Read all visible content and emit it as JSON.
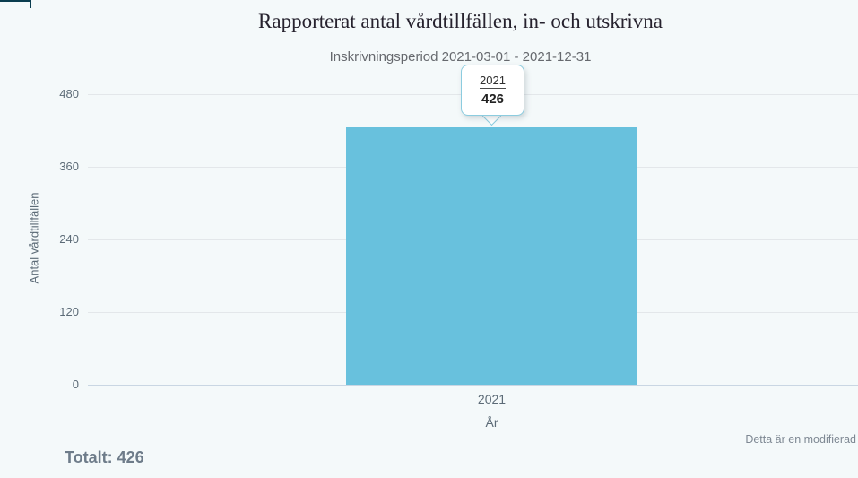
{
  "chart": {
    "title": "Rapporterat antal vårdtillfällen, in- och utskrivna",
    "subtitle": "Inskrivningsperiod 2021-03-01 - 2021-12-31",
    "y_axis": {
      "title": "Antal vårdtillfällen",
      "ticks": [
        "480",
        "360",
        "240",
        "120",
        "0"
      ]
    },
    "x_axis": {
      "title": "År",
      "categories": [
        "2021"
      ]
    },
    "tooltip": {
      "category": "2021",
      "value": "426"
    },
    "colors": {
      "bar": "#68c1dd",
      "background": "#f4f9fa",
      "tooltip_border": "#8cccdf",
      "corner_accent": "#0a3d4f",
      "gridline": "#e3e7ea",
      "axis_line": "#c9d6e3"
    }
  },
  "footer": {
    "total_label": "Totalt: 426",
    "note": "Detta är en modifierad"
  },
  "chart_data": {
    "type": "bar",
    "title": "Rapporterat antal vårdtillfällen, in- och utskrivna",
    "subtitle": "Inskrivningsperiod 2021-03-01 - 2021-12-31",
    "categories": [
      "2021"
    ],
    "values": [
      426
    ],
    "xlabel": "År",
    "ylabel": "Antal vårdtillfällen",
    "ylim": [
      0,
      480
    ],
    "yticks": [
      0,
      120,
      240,
      360,
      480
    ],
    "grid": true,
    "legend": false,
    "bar_color": "#68c1dd",
    "tooltip_visible": true,
    "tooltip_target": {
      "category": "2021",
      "value": 426
    },
    "total": 426
  }
}
